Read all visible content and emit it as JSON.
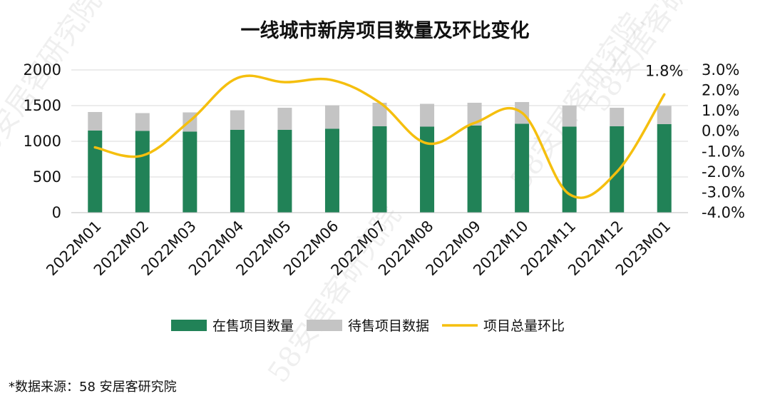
{
  "chart_data": {
    "type": "bar",
    "title": "一线城市新房项目数量及环比变化",
    "categories": [
      "2022M01",
      "2022M02",
      "2022M03",
      "2022M04",
      "2022M05",
      "2022M06",
      "2022M07",
      "2022M08",
      "2022M09",
      "2022M10",
      "2022M11",
      "2022M12",
      "2023M01"
    ],
    "stacked": true,
    "ylim": [
      0,
      2000
    ],
    "yticks": [
      0,
      500,
      1000,
      1500,
      2000
    ],
    "y2lim": [
      -4.0,
      3.0
    ],
    "y2ticks": [
      "-4.0%",
      "-3.0%",
      "-2.0%",
      "-1.0%",
      "0.0%",
      "1.0%",
      "2.0%",
      "3.0%"
    ],
    "series": [
      {
        "name": "在售项目数量",
        "kind": "bar",
        "color": "#218257",
        "values": [
          1150,
          1145,
          1135,
          1160,
          1160,
          1175,
          1210,
          1205,
          1220,
          1245,
          1205,
          1210,
          1240
        ]
      },
      {
        "name": "待售项目数据",
        "kind": "bar",
        "color": "#c4c4c4",
        "values": [
          260,
          250,
          270,
          275,
          310,
          330,
          330,
          320,
          320,
          305,
          295,
          260,
          255
        ]
      },
      {
        "name": "项目总量环比",
        "kind": "line",
        "axis": "right",
        "color": "#f5bf0e",
        "values": [
          -0.8,
          -1.2,
          0.5,
          2.6,
          2.4,
          2.5,
          1.4,
          -0.6,
          0.4,
          0.9,
          -3.1,
          -2.0,
          1.8
        ]
      }
    ],
    "data_labels": [
      {
        "series": "项目总量环比",
        "index": 12,
        "text": "1.8%"
      }
    ],
    "legend_position": "bottom",
    "grid": true
  },
  "source_note": "*数据来源：58 安居客研究院",
  "watermark_text": "58安居客研究院"
}
